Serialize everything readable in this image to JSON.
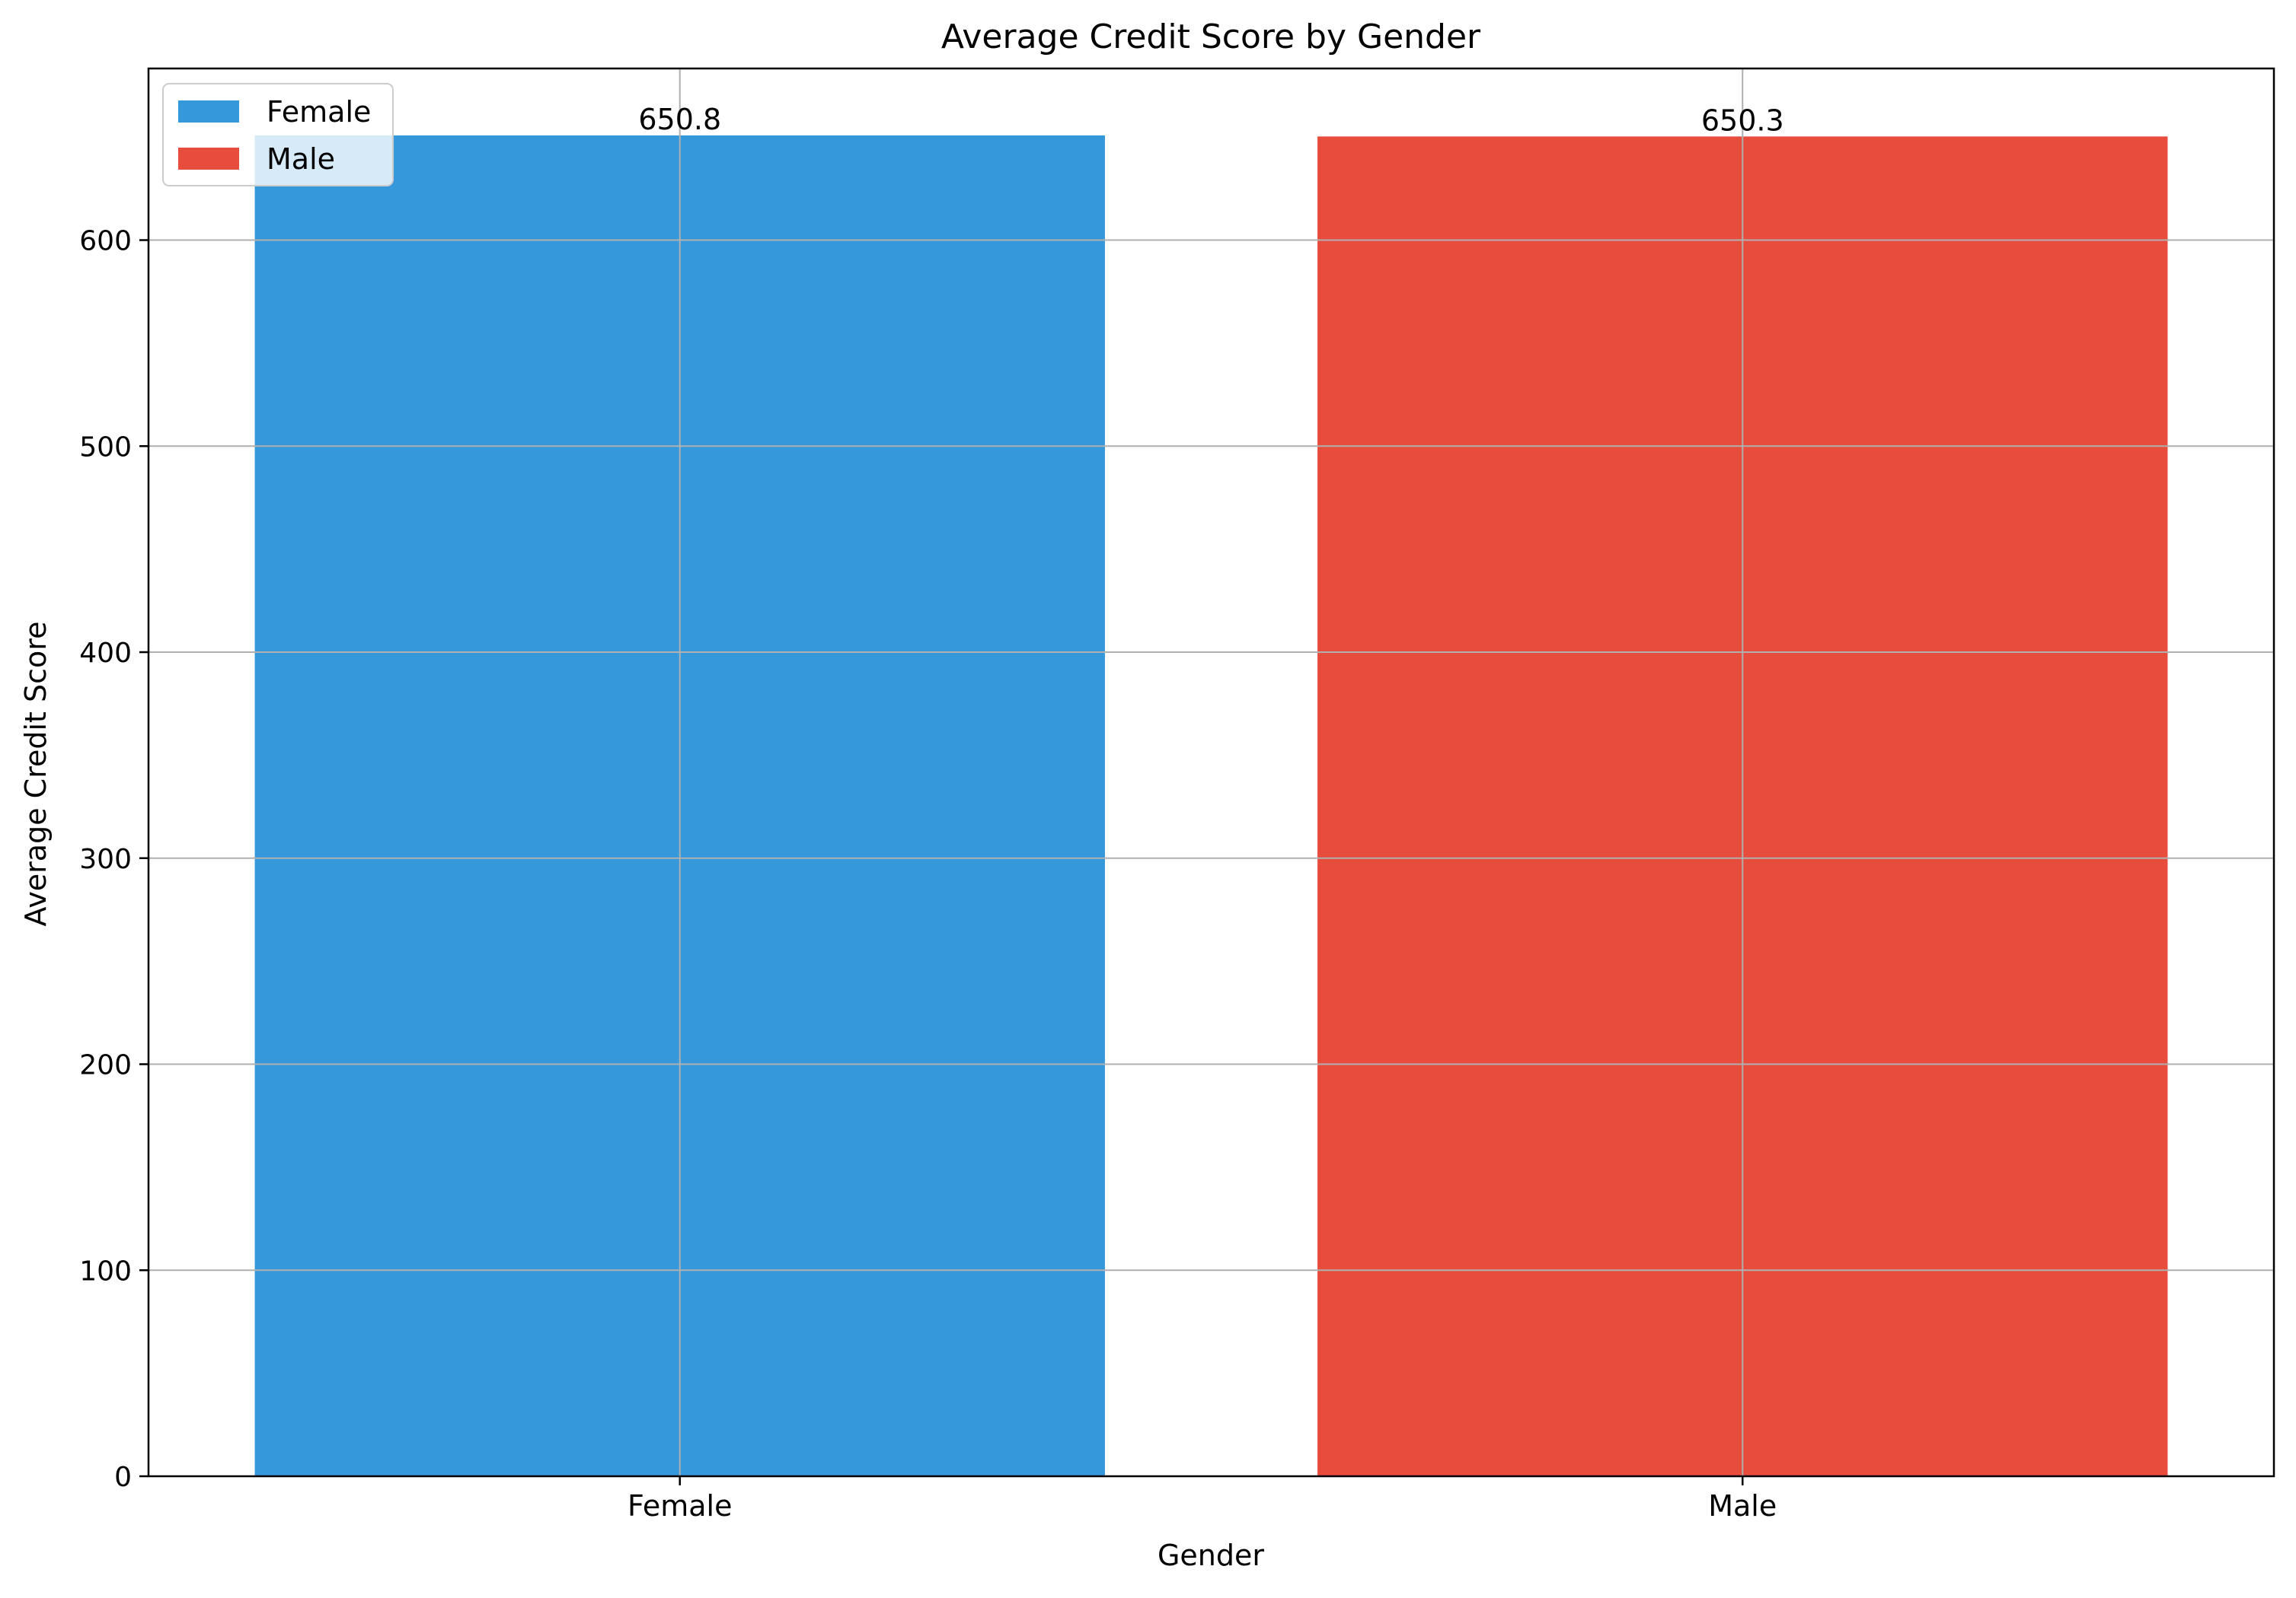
{
  "chart_data": {
    "type": "bar",
    "title": "Average Credit Score by Gender",
    "xlabel": "Gender",
    "ylabel": "Average Credit Score",
    "categories": [
      "Female",
      "Male"
    ],
    "values": [
      650.8,
      650.3
    ],
    "data_labels": [
      "650.8",
      "650.3"
    ],
    "colors": [
      "#3498db",
      "#e74c3c"
    ],
    "ylim": [
      0,
      683.3
    ],
    "yticks": [
      0,
      100,
      200,
      300,
      400,
      500,
      600
    ],
    "ytick_labels": [
      "0",
      "100",
      "200",
      "300",
      "400",
      "500",
      "600"
    ],
    "grid": true,
    "legend": {
      "placement": "top-left",
      "entries": [
        {
          "label": "Female",
          "color": "#3498db"
        },
        {
          "label": "Male",
          "color": "#e74c3c"
        }
      ]
    }
  }
}
